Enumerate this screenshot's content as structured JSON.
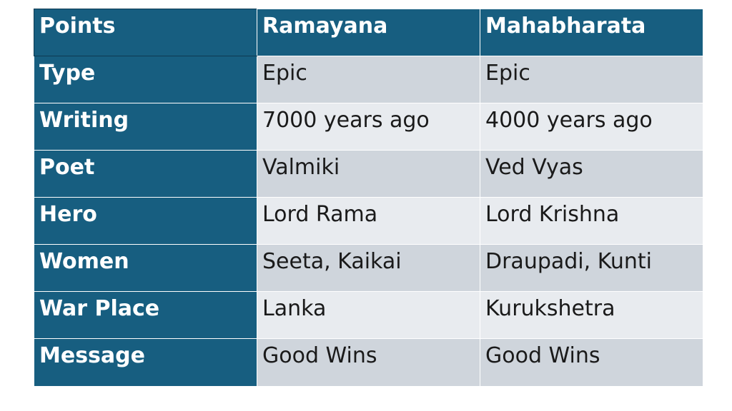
{
  "table": {
    "headers": [
      "Points",
      "Ramayana",
      "Mahabharata"
    ],
    "rows": [
      {
        "label": "Type",
        "ramayana": "Epic",
        "mahabharata": "Epic"
      },
      {
        "label": "Writing",
        "ramayana": "7000 years ago",
        "mahabharata": "4000 years ago"
      },
      {
        "label": "Poet",
        "ramayana": "Valmiki",
        "mahabharata": "Ved Vyas"
      },
      {
        "label": "Hero",
        "ramayana": "Lord Rama",
        "mahabharata": "Lord Krishna"
      },
      {
        "label": "Women",
        "ramayana": "Seeta, Kaikai",
        "mahabharata": "Draupadi, Kunti"
      },
      {
        "label": "War Place",
        "ramayana": "Lanka",
        "mahabharata": "Kurukshetra"
      },
      {
        "label": "Message",
        "ramayana": "Good Wins",
        "mahabharata": "Good Wins"
      }
    ]
  },
  "colors": {
    "header_fill": "#175e80",
    "header_text": "#ffffff",
    "band_dark": "#cfd5dc",
    "band_light": "#e8ebef",
    "cell_text": "#1a1a1a"
  }
}
